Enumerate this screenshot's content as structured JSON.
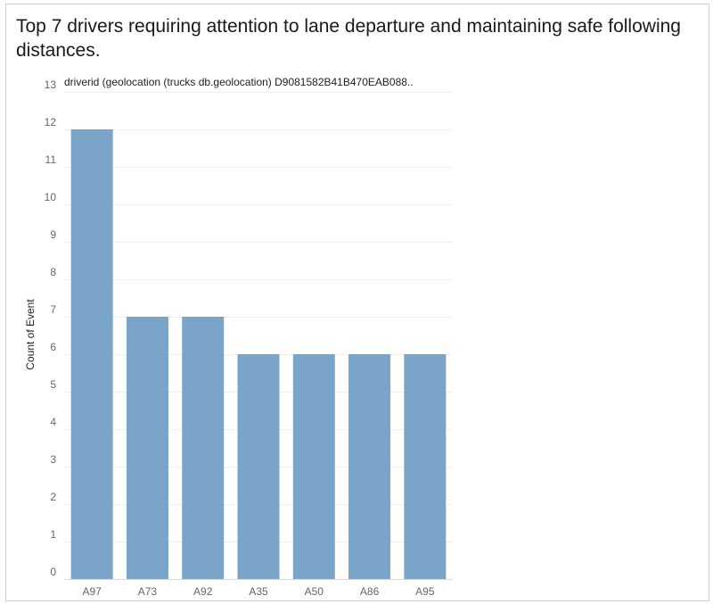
{
  "title": "Top 7 drivers requiring attention to lane departure and maintaining safe following distances.",
  "chart_header": "driverid (geolocation (trucks db.geolocation) D9081582B41B470EAB088..",
  "chart_data": {
    "type": "bar",
    "categories": [
      "A97",
      "A73",
      "A92",
      "A35",
      "A50",
      "A86",
      "A95"
    ],
    "values": [
      12,
      7,
      7,
      6,
      6,
      6,
      6
    ],
    "title": "Top 7 drivers requiring attention to lane departure and maintaining safe following distances.",
    "xlabel": "driverid (geolocation (trucks db.geolocation) D9081582B41B470EAB088..",
    "ylabel": "Count of Event",
    "ylim": [
      0,
      13
    ],
    "yticks": [
      0,
      1,
      2,
      3,
      4,
      5,
      6,
      7,
      8,
      9,
      10,
      11,
      12,
      13
    ],
    "grid": true,
    "legend": "none",
    "bar_color": "#7aa4c8",
    "grid_color": "#f0f0f0",
    "axis_color": "#d9d9d9"
  }
}
